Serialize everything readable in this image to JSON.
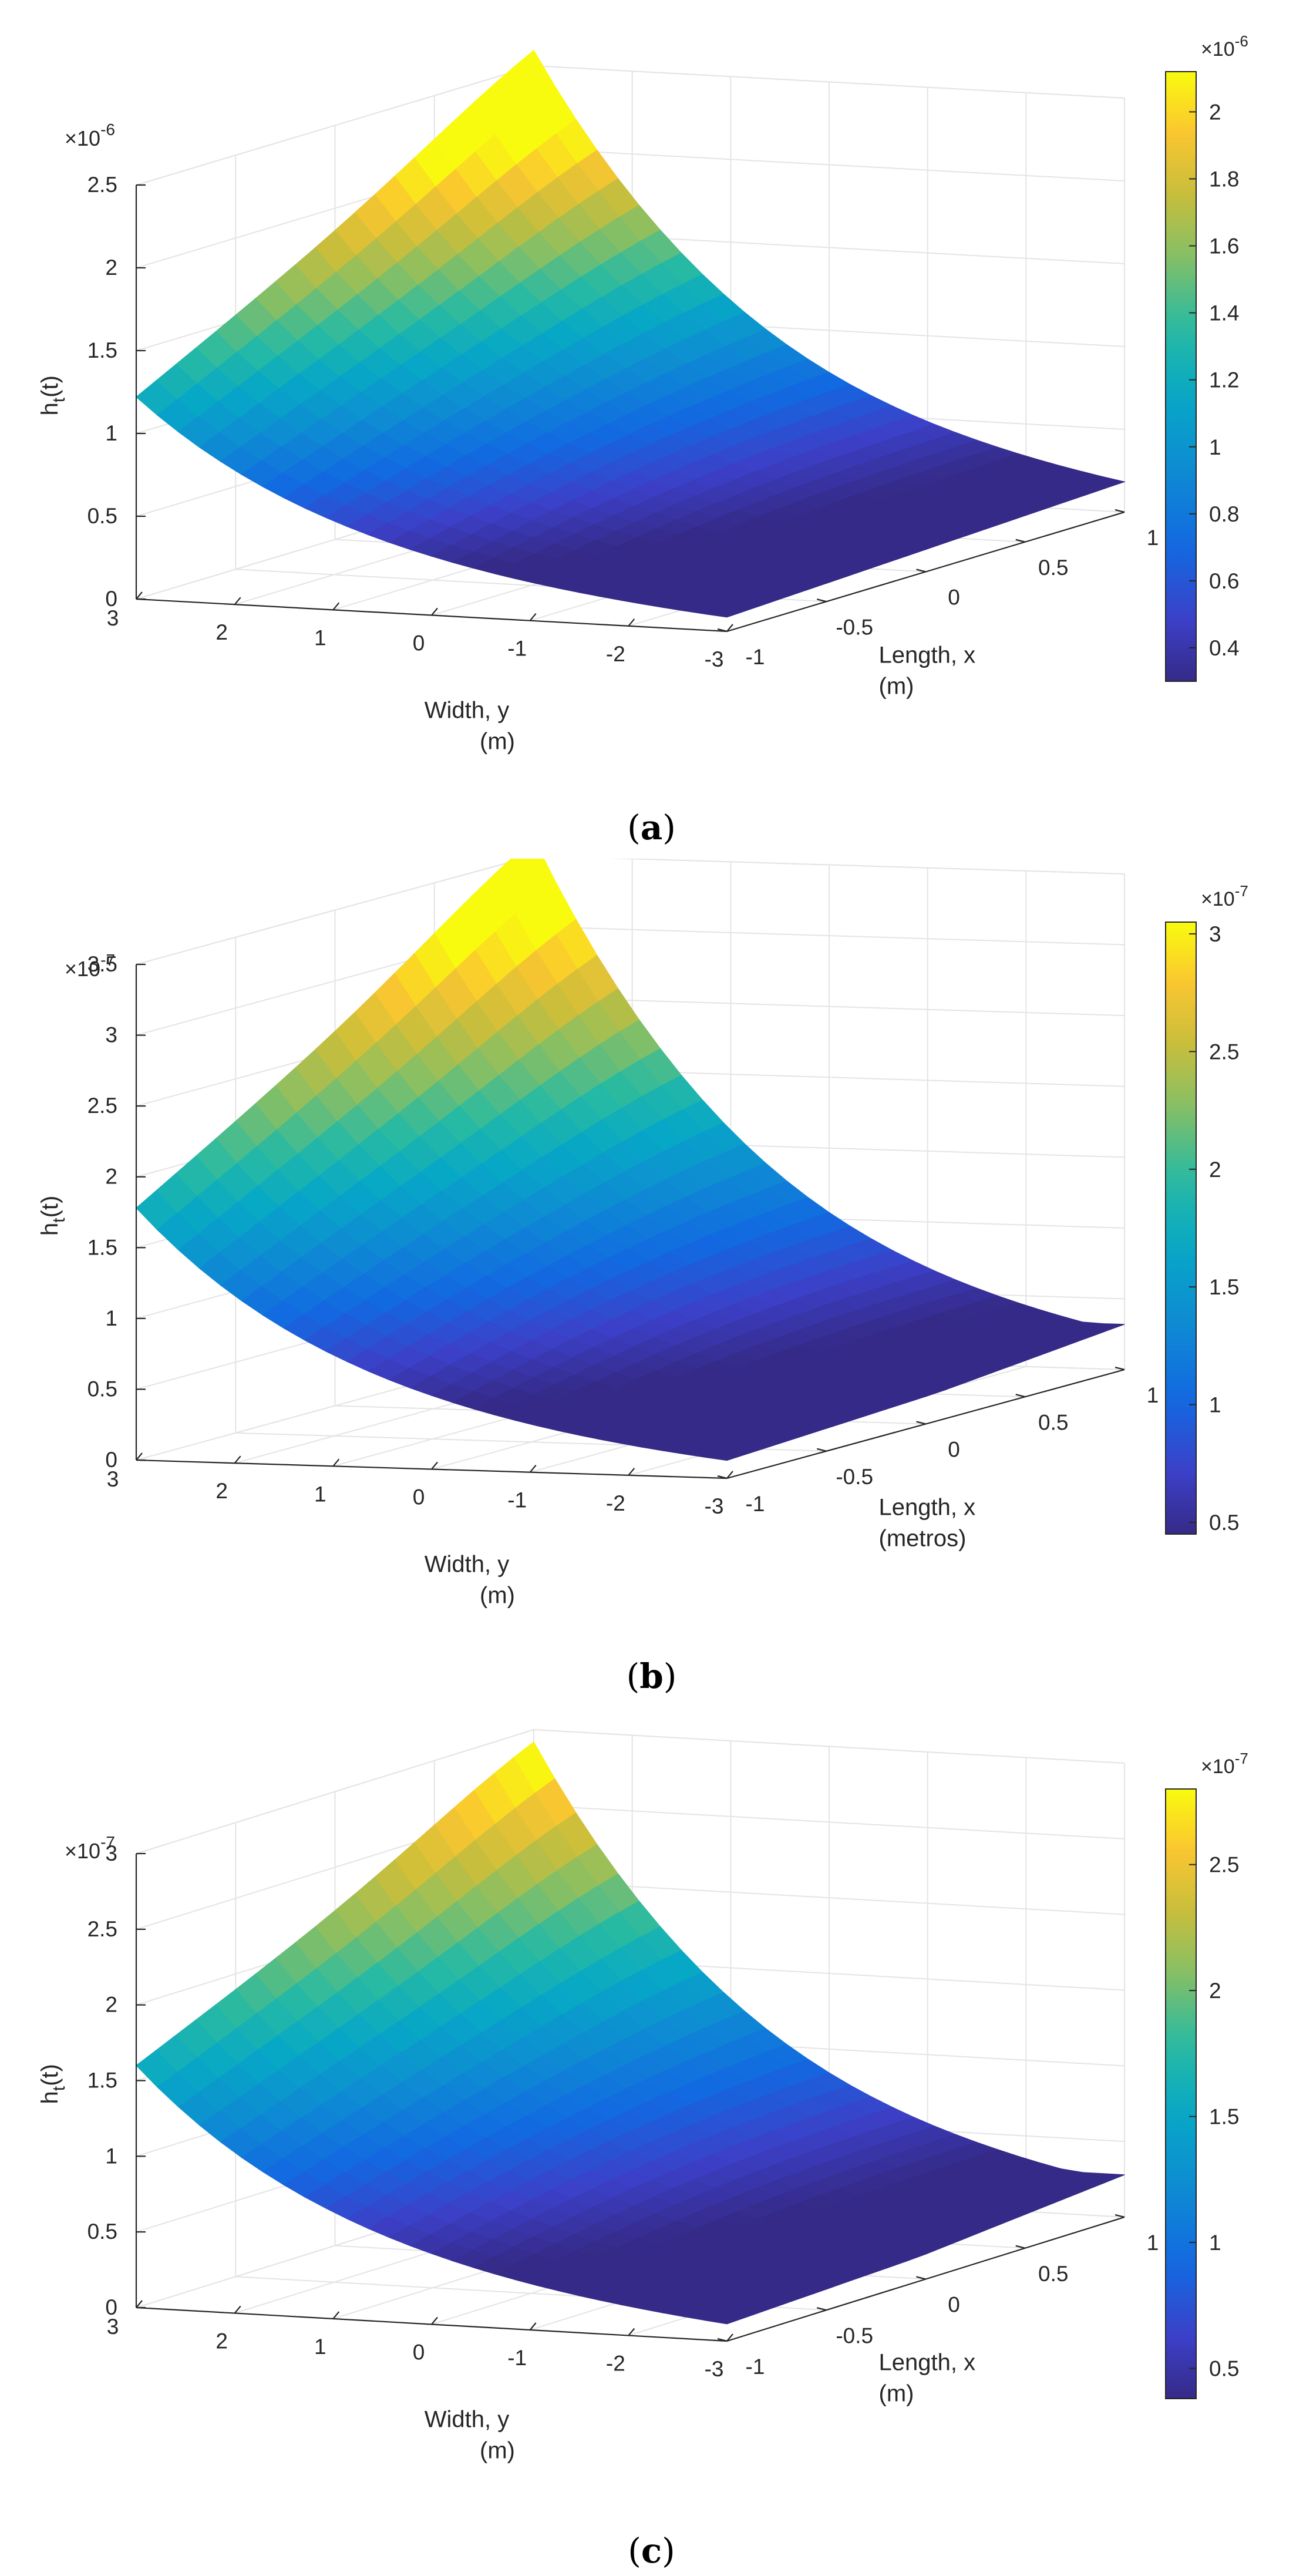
{
  "chart_data": [
    {
      "type": "surface3d",
      "panel_label": "a",
      "zlabel": "h_t(t)",
      "zlabel_main": "h",
      "zlabel_sub": "t",
      "zlabel_tail": "(t)",
      "xlabel_line1": "Width, y",
      "xlabel_line2": "(m)",
      "ylabel_line1": "Length, x",
      "ylabel_line2": "(m)",
      "z_exponent_base": "×10",
      "z_exponent": "-6",
      "z_ticks": [
        "0",
        "0.5",
        "1",
        "1.5",
        "2",
        "2.5"
      ],
      "zlim": [
        0,
        2.5
      ],
      "width_ticks": [
        "3",
        "2",
        "1",
        "0",
        "-1",
        "-2",
        "-3"
      ],
      "length_ticks": [
        "-1",
        "-0.5",
        "0",
        "0.5",
        "1"
      ],
      "corner_values": {
        "y3_xneg1": 1.22,
        "y3_x1": 2.47,
        "yneg3_x1": 0.18,
        "yneg3_xneg1": 0.03
      },
      "colorbar": {
        "exponent_base": "×10",
        "exponent": "-6",
        "ticks": [
          "0.4",
          "0.6",
          "0.8",
          "1",
          "1.2",
          "1.4",
          "1.6",
          "1.8",
          "2"
        ],
        "tick_values": [
          0.4,
          0.6,
          0.8,
          1.0,
          1.2,
          1.4,
          1.6,
          1.8,
          2.0
        ],
        "range": [
          0.3,
          2.12
        ]
      },
      "colormap": "parula"
    },
    {
      "type": "surface3d",
      "panel_label": "b",
      "zlabel": "h_t(t)",
      "zlabel_main": "h",
      "zlabel_sub": "t",
      "zlabel_tail": "(t)",
      "xlabel_line1": "Width, y",
      "xlabel_line2": "(m)",
      "ylabel_line1": "Length, x",
      "ylabel_line2": "(metros)",
      "z_exponent_base": "×10",
      "z_exponent": "-7",
      "z_ticks": [
        "0",
        "0.5",
        "1",
        "1.5",
        "2",
        "2.5",
        "3",
        "3.5"
      ],
      "zlim": [
        0,
        3.5
      ],
      "width_ticks": [
        "3",
        "2",
        "1",
        "0",
        "-1",
        "-2",
        "-3"
      ],
      "length_ticks": [
        "-1",
        "-0.5",
        "0",
        "0.5",
        "1"
      ],
      "corner_values": {
        "y3_xneg1": 1.78,
        "y3_x1": 3.45,
        "yneg3_x1": 0.32,
        "yneg3_xneg1": 0.06
      },
      "colorbar": {
        "exponent_base": "×10",
        "exponent": "-7",
        "ticks": [
          "0.5",
          "1",
          "1.5",
          "2",
          "2.5",
          "3"
        ],
        "tick_values": [
          0.5,
          1.0,
          1.5,
          2.0,
          2.5,
          3.0
        ],
        "range": [
          0.45,
          3.05
        ]
      },
      "colormap": "parula"
    },
    {
      "type": "surface3d",
      "panel_label": "c",
      "zlabel": "h_t(t)",
      "zlabel_main": "h",
      "zlabel_sub": "t",
      "zlabel_tail": "(t)",
      "xlabel_line1": "Width, y",
      "xlabel_line2": "(m)",
      "ylabel_line1": "Length, x",
      "ylabel_line2": "(m)",
      "z_exponent_base": "×10",
      "z_exponent": "-7",
      "z_ticks": [
        "0",
        "0.5",
        "1",
        "1.5",
        "2",
        "2.5",
        "3"
      ],
      "zlim": [
        0,
        3
      ],
      "width_ticks": [
        "3",
        "2",
        "1",
        "0",
        "-1",
        "-2",
        "-3"
      ],
      "length_ticks": [
        "-1",
        "-0.5",
        "0",
        "0.5",
        "1"
      ],
      "corner_values": {
        "y3_xneg1": 1.6,
        "y3_x1": 2.78,
        "yneg3_x1": 0.28,
        "yneg3_xneg1": 0.05
      },
      "colorbar": {
        "exponent_base": "×10",
        "exponent": "-7",
        "ticks": [
          "0.5",
          "1",
          "1.5",
          "2",
          "2.5"
        ],
        "tick_values": [
          0.5,
          1.0,
          1.5,
          2.0,
          2.5
        ],
        "range": [
          0.38,
          2.8
        ]
      },
      "colormap": "parula"
    }
  ]
}
